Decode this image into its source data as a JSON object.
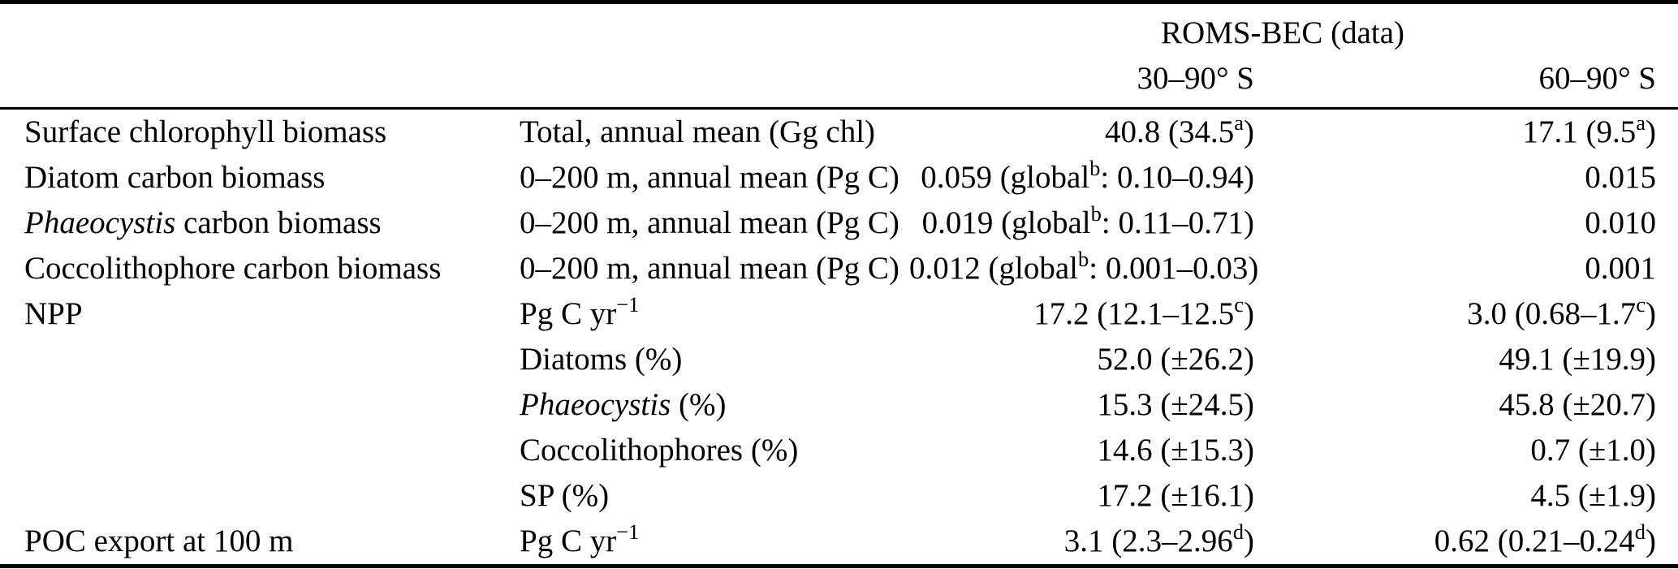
{
  "table": {
    "title_group": "ROMS-BEC (data)",
    "header": {
      "col_region_1": "30–90° S",
      "col_region_2": "60–90° S"
    },
    "rows": [
      {
        "label": "Surface chlorophyll biomass",
        "desc": "Total, annual mean (Gg chl)",
        "v1": "40.8 (34.5^{a})",
        "v2": "17.1 (9.5^{a})"
      },
      {
        "label": "Diatom carbon biomass",
        "desc": "0–200 m, annual mean (Pg C)",
        "v1": "0.059 (global^{b}: 0.10–0.94)",
        "v2": "0.015"
      },
      {
        "label": "*Phaeocystis* carbon biomass",
        "desc": "0–200 m, annual mean (Pg C)",
        "v1": "0.019 (global^{b}: 0.11–0.71)",
        "v2": "0.010"
      },
      {
        "label": "Coccolithophore carbon biomass",
        "desc": "0–200 m, annual mean (Pg C)",
        "v1": "0.012 (global^{b}: 0.001–0.03)",
        "v2": "0.001"
      },
      {
        "label": "NPP",
        "desc": "Pg C yr^{−1}",
        "v1": "17.2 (12.1–12.5^{c})",
        "v2": "3.0 (0.68–1.7^{c})"
      },
      {
        "label": "",
        "desc": "Diatoms (%)",
        "v1": "52.0 (±26.2)",
        "v2": "49.1 (±19.9)"
      },
      {
        "label": "",
        "desc": "*Phaeocystis* (%)",
        "v1": "15.3 (±24.5)",
        "v2": "45.8 (±20.7)"
      },
      {
        "label": "",
        "desc": "Coccolithophores (%)",
        "v1": "14.6 (±15.3)",
        "v2": "0.7 (±1.0)"
      },
      {
        "label": "",
        "desc": "SP (%)",
        "v1": "17.2 (±16.1)",
        "v2": "4.5 (±1.9)"
      },
      {
        "label": "POC export at 100 m",
        "desc": "Pg C yr^{−1}",
        "v1": "3.1 (2.3–2.96^{d})",
        "v2": "0.62 (0.21–0.24^{d})"
      }
    ],
    "colors": {
      "text": "#000000",
      "rule": "#000000",
      "background": "#ffffff"
    }
  },
  "chart_data": {
    "type": "table",
    "title": "ROMS-BEC (data)",
    "columns": [
      "Quantity",
      "Description",
      "30–90° S",
      "60–90° S"
    ],
    "cells": [
      [
        "Surface chlorophyll biomass",
        "Total, annual mean (Gg chl)",
        "40.8 (34.5a)",
        "17.1 (9.5a)"
      ],
      [
        "Diatom carbon biomass",
        "0–200 m, annual mean (Pg C)",
        "0.059 (globalb: 0.10–0.94)",
        "0.015"
      ],
      [
        "Phaeocystis carbon biomass",
        "0–200 m, annual mean (Pg C)",
        "0.019 (globalb: 0.11–0.71)",
        "0.010"
      ],
      [
        "Coccolithophore carbon biomass",
        "0–200 m, annual mean (Pg C)",
        "0.012 (globalb: 0.001–0.03)",
        "0.001"
      ],
      [
        "NPP",
        "Pg C yr−1",
        "17.2 (12.1–12.5c)",
        "3.0 (0.68–1.7c)"
      ],
      [
        "",
        "Diatoms (%)",
        "52.0 (±26.2)",
        "49.1 (±19.9)"
      ],
      [
        "",
        "Phaeocystis (%)",
        "15.3 (±24.5)",
        "45.8 (±20.7)"
      ],
      [
        "",
        "Coccolithophores (%)",
        "14.6 (±15.3)",
        "0.7 (±1.0)"
      ],
      [
        "",
        "SP (%)",
        "17.2 (±16.1)",
        "4.5 (±1.9)"
      ],
      [
        "POC export at 100 m",
        "Pg C yr−1",
        "3.1 (2.3–2.96d)",
        "0.62 (0.21–0.24d)"
      ]
    ]
  }
}
